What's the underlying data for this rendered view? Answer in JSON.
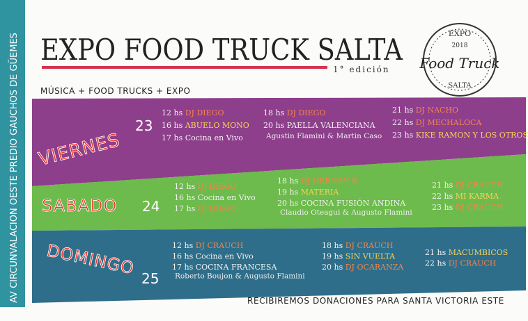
{
  "side_text": "AV CIRCUNVALACION OESTE PREDIO GAUCHOS DE GÜEMES",
  "header": {
    "title": "EXPO FOOD TRUCK SALTA",
    "edition": "1° edición",
    "tagline": "MÚSICA + FOOD TRUCKS + EXPO"
  },
  "logo": {
    "top": "EXPO",
    "year": "2018",
    "name": "Food Truck",
    "bottom": "SALTA"
  },
  "days": [
    {
      "name": "VIERNES",
      "number": "23",
      "columns": [
        [
          {
            "time": "12 hs",
            "act": "DJ DIEGO",
            "color": "#f5844a"
          },
          {
            "time": "16 hs",
            "act": "ABUELO MONO",
            "color": "#f7d35a"
          },
          {
            "time": "17 hs",
            "act": "Cocina en Vivo",
            "color": "#f2f2f2"
          }
        ],
        [
          {
            "time": "18 hs",
            "act": "DJ DIEGO",
            "color": "#f5844a"
          },
          {
            "time": "20 hs",
            "act": "PAELLA VALENCIANA",
            "color": "#f2f2f2",
            "sub": "Agustin Flamini & Martin Caso"
          }
        ],
        [
          {
            "time": "21 hs",
            "act": "DJ NACHO",
            "color": "#f5844a"
          },
          {
            "time": "22 hs",
            "act": "DJ MECHALOCA",
            "color": "#f5844a"
          },
          {
            "time": "23 hs",
            "act": "KIKE RAMON Y LOS OTROS",
            "color": "#f7d35a"
          }
        ]
      ]
    },
    {
      "name": "SABADO",
      "number": "24",
      "columns": [
        [
          {
            "time": "12 hs",
            "act": "DJ DIEGO",
            "color": "#f5844a"
          },
          {
            "time": "16 hs",
            "act": "Cocina en Vivo",
            "color": "#f2f2f2"
          },
          {
            "time": "17 hs",
            "act": "DJ DIEGO",
            "color": "#f5844a"
          }
        ],
        [
          {
            "time": "18 hs",
            "act": "DJ HERNAN B",
            "color": "#f5844a"
          },
          {
            "time": "19 hs",
            "act": "MATERIA",
            "color": "#f7d35a"
          },
          {
            "time": "20 hs",
            "act": "COCINA FUSIÓN ANDINA",
            "color": "#f2f2f2",
            "sub": "Claudio Oteagui & Augusto Flamini"
          }
        ],
        [
          {
            "time": "21 hs",
            "act": "DJ CRAUCH",
            "color": "#f5844a"
          },
          {
            "time": "22 hs",
            "act": "MI KARMA",
            "color": "#f7d35a"
          },
          {
            "time": "23 hs",
            "act": "DJ CRAUCH",
            "color": "#f5844a"
          }
        ]
      ]
    },
    {
      "name": "DOMINGO",
      "number": "25",
      "columns": [
        [
          {
            "time": "12 hs",
            "act": "DJ CRAUCH",
            "color": "#f5844a"
          },
          {
            "time": "16 hs",
            "act": "Cocina en Vivo",
            "color": "#f2f2f2"
          },
          {
            "time": "17 hs",
            "act": "COCINA FRANCESA",
            "color": "#f2f2f2",
            "sub": "Roberto Boujon & Augusto Flamini"
          }
        ],
        [
          {
            "time": "18 hs",
            "act": "DJ CRAUCH",
            "color": "#f5844a"
          },
          {
            "time": "19 hs",
            "act": "SIN VUELTA",
            "color": "#f7d35a"
          },
          {
            "time": "20 hs",
            "act": "DJ OCARANZA",
            "color": "#f5844a"
          }
        ],
        [
          {
            "time": "21 hs",
            "act": "MACUMBICOS",
            "color": "#f7d35a"
          },
          {
            "time": "22 hs",
            "act": "DJ CRAUCH",
            "color": "#f5844a"
          }
        ]
      ]
    }
  ],
  "footer": "RECIBIREMOS DONACIONES PARA SANTA VICTORIA ESTE"
}
